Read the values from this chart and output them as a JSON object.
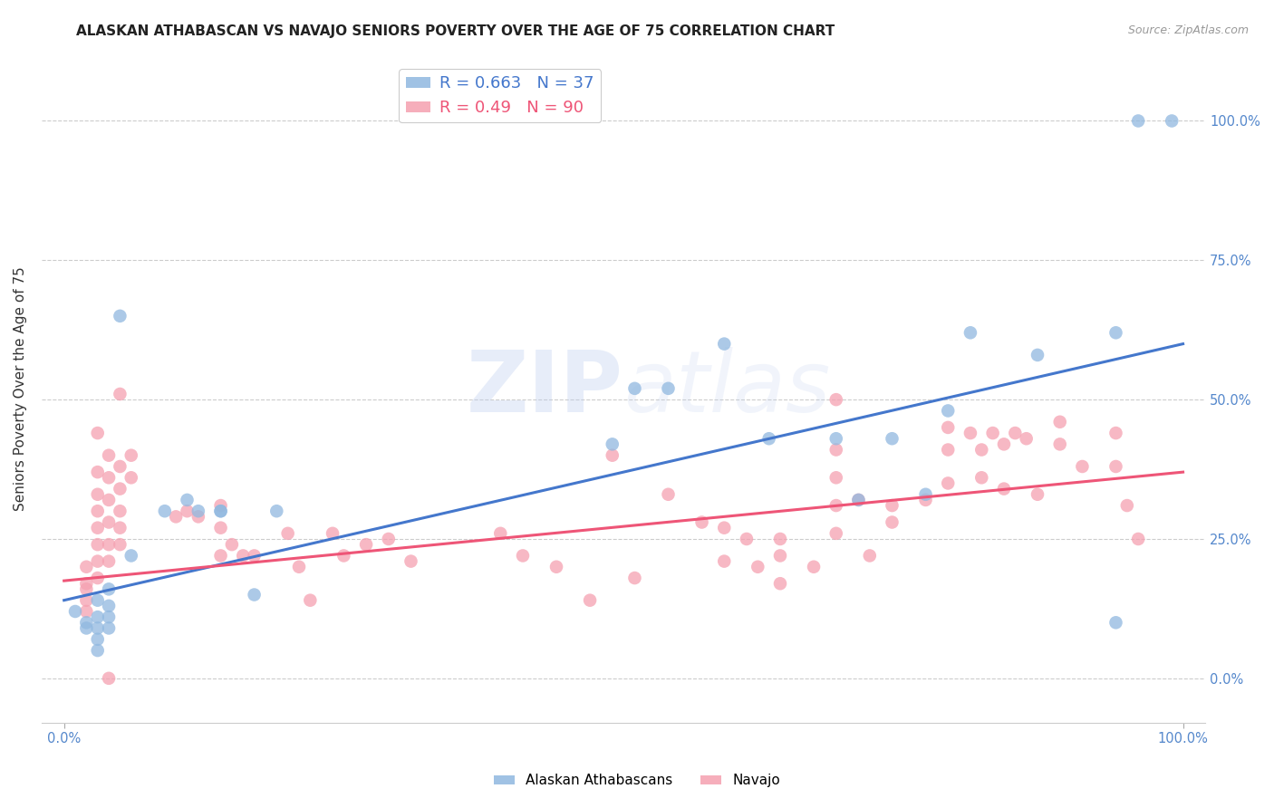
{
  "title": "ALASKAN ATHABASCAN VS NAVAJO SENIORS POVERTY OVER THE AGE OF 75 CORRELATION CHART",
  "source": "Source: ZipAtlas.com",
  "ylabel": "Seniors Poverty Over the Age of 75",
  "ytick_labels": [
    "0.0%",
    "25.0%",
    "50.0%",
    "75.0%",
    "100.0%"
  ],
  "ytick_values": [
    0,
    0.25,
    0.5,
    0.75,
    1.0
  ],
  "xlim": [
    -0.02,
    1.02
  ],
  "ylim": [
    -0.08,
    1.12
  ],
  "blue_R": 0.663,
  "blue_N": 37,
  "pink_R": 0.49,
  "pink_N": 90,
  "blue_color": "#90B8E0",
  "pink_color": "#F5A0B0",
  "blue_line_color": "#4477CC",
  "pink_line_color": "#EE5577",
  "blue_scatter": [
    [
      0.01,
      0.12
    ],
    [
      0.02,
      0.1
    ],
    [
      0.02,
      0.09
    ],
    [
      0.03,
      0.14
    ],
    [
      0.03,
      0.11
    ],
    [
      0.03,
      0.09
    ],
    [
      0.03,
      0.07
    ],
    [
      0.03,
      0.05
    ],
    [
      0.04,
      0.16
    ],
    [
      0.04,
      0.13
    ],
    [
      0.04,
      0.11
    ],
    [
      0.04,
      0.09
    ],
    [
      0.05,
      0.65
    ],
    [
      0.06,
      0.22
    ],
    [
      0.09,
      0.3
    ],
    [
      0.11,
      0.32
    ],
    [
      0.12,
      0.3
    ],
    [
      0.14,
      0.3
    ],
    [
      0.14,
      0.3
    ],
    [
      0.17,
      0.15
    ],
    [
      0.19,
      0.3
    ],
    [
      0.49,
      0.42
    ],
    [
      0.51,
      0.52
    ],
    [
      0.54,
      0.52
    ],
    [
      0.59,
      0.6
    ],
    [
      0.63,
      0.43
    ],
    [
      0.69,
      0.43
    ],
    [
      0.71,
      0.32
    ],
    [
      0.74,
      0.43
    ],
    [
      0.77,
      0.33
    ],
    [
      0.79,
      0.48
    ],
    [
      0.81,
      0.62
    ],
    [
      0.87,
      0.58
    ],
    [
      0.94,
      0.62
    ],
    [
      0.96,
      1.0
    ],
    [
      0.99,
      1.0
    ],
    [
      0.94,
      0.1
    ]
  ],
  "pink_scatter": [
    [
      0.02,
      0.2
    ],
    [
      0.02,
      0.17
    ],
    [
      0.02,
      0.16
    ],
    [
      0.02,
      0.14
    ],
    [
      0.02,
      0.12
    ],
    [
      0.03,
      0.44
    ],
    [
      0.03,
      0.37
    ],
    [
      0.03,
      0.33
    ],
    [
      0.03,
      0.3
    ],
    [
      0.03,
      0.27
    ],
    [
      0.03,
      0.24
    ],
    [
      0.03,
      0.21
    ],
    [
      0.03,
      0.18
    ],
    [
      0.04,
      0.4
    ],
    [
      0.04,
      0.36
    ],
    [
      0.04,
      0.32
    ],
    [
      0.04,
      0.28
    ],
    [
      0.04,
      0.24
    ],
    [
      0.04,
      0.21
    ],
    [
      0.04,
      0.0
    ],
    [
      0.05,
      0.38
    ],
    [
      0.05,
      0.34
    ],
    [
      0.05,
      0.3
    ],
    [
      0.05,
      0.27
    ],
    [
      0.05,
      0.24
    ],
    [
      0.05,
      0.51
    ],
    [
      0.06,
      0.4
    ],
    [
      0.06,
      0.36
    ],
    [
      0.1,
      0.29
    ],
    [
      0.11,
      0.3
    ],
    [
      0.12,
      0.29
    ],
    [
      0.14,
      0.31
    ],
    [
      0.14,
      0.22
    ],
    [
      0.14,
      0.27
    ],
    [
      0.15,
      0.24
    ],
    [
      0.16,
      0.22
    ],
    [
      0.17,
      0.22
    ],
    [
      0.2,
      0.26
    ],
    [
      0.21,
      0.2
    ],
    [
      0.22,
      0.14
    ],
    [
      0.24,
      0.26
    ],
    [
      0.25,
      0.22
    ],
    [
      0.27,
      0.24
    ],
    [
      0.29,
      0.25
    ],
    [
      0.31,
      0.21
    ],
    [
      0.39,
      0.26
    ],
    [
      0.41,
      0.22
    ],
    [
      0.44,
      0.2
    ],
    [
      0.47,
      0.14
    ],
    [
      0.49,
      0.4
    ],
    [
      0.51,
      0.18
    ],
    [
      0.54,
      0.33
    ],
    [
      0.57,
      0.28
    ],
    [
      0.59,
      0.27
    ],
    [
      0.59,
      0.21
    ],
    [
      0.61,
      0.25
    ],
    [
      0.62,
      0.2
    ],
    [
      0.64,
      0.25
    ],
    [
      0.64,
      0.22
    ],
    [
      0.64,
      0.17
    ],
    [
      0.67,
      0.2
    ],
    [
      0.69,
      0.5
    ],
    [
      0.69,
      0.41
    ],
    [
      0.69,
      0.36
    ],
    [
      0.69,
      0.31
    ],
    [
      0.69,
      0.26
    ],
    [
      0.71,
      0.32
    ],
    [
      0.72,
      0.22
    ],
    [
      0.74,
      0.31
    ],
    [
      0.74,
      0.28
    ],
    [
      0.77,
      0.32
    ],
    [
      0.79,
      0.45
    ],
    [
      0.79,
      0.41
    ],
    [
      0.79,
      0.35
    ],
    [
      0.81,
      0.44
    ],
    [
      0.82,
      0.41
    ],
    [
      0.82,
      0.36
    ],
    [
      0.83,
      0.44
    ],
    [
      0.84,
      0.42
    ],
    [
      0.84,
      0.34
    ],
    [
      0.85,
      0.44
    ],
    [
      0.86,
      0.43
    ],
    [
      0.87,
      0.33
    ],
    [
      0.89,
      0.46
    ],
    [
      0.89,
      0.42
    ],
    [
      0.91,
      0.38
    ],
    [
      0.94,
      0.44
    ],
    [
      0.94,
      0.38
    ],
    [
      0.95,
      0.31
    ],
    [
      0.96,
      0.25
    ]
  ],
  "blue_line_x": [
    0.0,
    1.0
  ],
  "blue_line_y": [
    0.14,
    0.6
  ],
  "pink_line_x": [
    0.0,
    1.0
  ],
  "pink_line_y": [
    0.175,
    0.37
  ],
  "watermark_zip": "ZIP",
  "watermark_atlas": "atlas",
  "background_color": "#FFFFFF",
  "grid_color": "#CCCCCC",
  "right_tick_color": "#5588CC",
  "title_fontsize": 11,
  "axis_label_fontsize": 11,
  "tick_fontsize": 10.5,
  "legend_fontsize": 13
}
